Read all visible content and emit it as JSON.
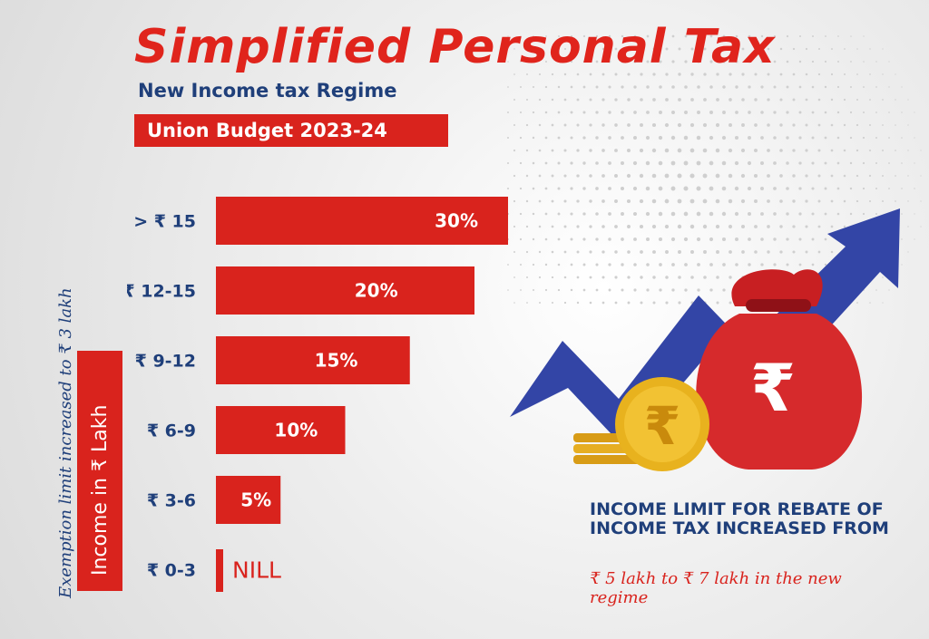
{
  "header": {
    "title": "Simplified Personal Tax",
    "subtitle": "New Income tax Regime",
    "badge": "Union Budget 2023-24"
  },
  "side": {
    "exemption_note": "Exemption limit increased to ₹ 3 lakh",
    "axis_box_label": "Income in ₹ Lakh"
  },
  "rebate": {
    "heading": "INCOME LIMIT FOR REBATE OF INCOME TAX INCREASED FROM",
    "detail": "₹ 5 lakh to ₹ 7 lakh in the new regime"
  },
  "art": {
    "arrow_icon": "trend-up-arrow-icon",
    "bag_icon": "rupee-money-bag-icon",
    "coin_icon": "rupee-coin-icon",
    "rupee_symbol": "₹"
  },
  "colors": {
    "accent_red": "#d9231d",
    "navy": "#1f3f7a",
    "arrow_blue": "#3345a6",
    "coin_gold": "#e3a918"
  },
  "chart_data": {
    "type": "bar",
    "orientation": "horizontal",
    "categories": [
      "> ₹ 15",
      "₹ 12-15",
      "₹ 9-12",
      "₹ 6-9",
      "₹ 3-6",
      "₹ 0-3"
    ],
    "values": [
      30,
      20,
      15,
      10,
      5,
      0
    ],
    "data_labels": [
      "30%",
      "20%",
      "15%",
      "10%",
      "5%",
      "NILL"
    ],
    "ylabel": "Income in ₹ Lakh",
    "grid": false
  }
}
